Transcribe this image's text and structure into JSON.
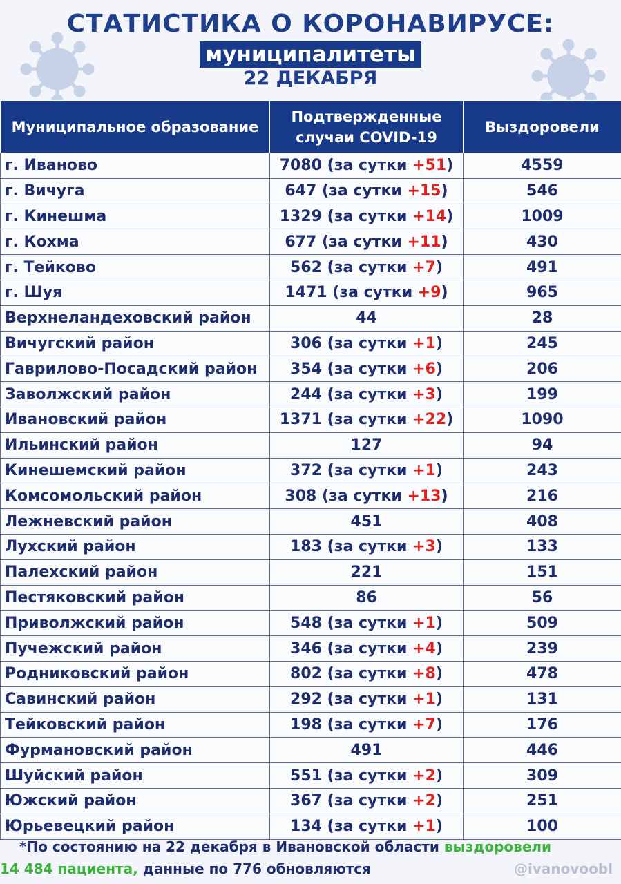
{
  "header": {
    "title": "СТАТИСТИКА О КОРОНАВИРУСЕ:",
    "subtitle": "муниципалитеты",
    "date": "22 ДЕКАБРЯ"
  },
  "table": {
    "columns": [
      "Муниципальное образование",
      "Подтвержденные случаи COVID-19",
      "Выздоровели"
    ],
    "rows": [
      {
        "name": "г. Иваново",
        "cases": "7080",
        "inc": "+51",
        "recovered": "4559"
      },
      {
        "name": "г. Вичуга",
        "cases": "647",
        "inc": "+15",
        "recovered": "546"
      },
      {
        "name": "г. Кинешма",
        "cases": "1329",
        "inc": "+14",
        "recovered": "1009"
      },
      {
        "name": "г. Кохма",
        "cases": "677",
        "inc": "+11",
        "recovered": "430"
      },
      {
        "name": "г. Тейково",
        "cases": "562",
        "inc": "+7",
        "recovered": "491"
      },
      {
        "name": "г. Шуя",
        "cases": "1471",
        "inc": "+9",
        "recovered": "965"
      },
      {
        "name": "Верхнеландеховский район",
        "cases": "44",
        "inc": "",
        "recovered": "28"
      },
      {
        "name": "Вичугский район",
        "cases": "306",
        "inc": "+1",
        "recovered": "245"
      },
      {
        "name": "Гаврилово-Посадский район",
        "cases": "354",
        "inc": "+6",
        "recovered": "206"
      },
      {
        "name": "Заволжский район",
        "cases": "244",
        "inc": "+3",
        "recovered": "199"
      },
      {
        "name": "Ивановский район",
        "cases": "1371",
        "inc": "+22",
        "recovered": "1090"
      },
      {
        "name": "Ильинский район",
        "cases": "127",
        "inc": "",
        "recovered": "94"
      },
      {
        "name": "Кинешемский район",
        "cases": "372",
        "inc": "+1",
        "recovered": "243"
      },
      {
        "name": "Комсомольский район",
        "cases": "308",
        "inc": "+13",
        "recovered": "216"
      },
      {
        "name": "Лежневский район",
        "cases": "451",
        "inc": "",
        "recovered": "408"
      },
      {
        "name": "Лухский район",
        "cases": "183",
        "inc": "+3",
        "recovered": "133"
      },
      {
        "name": "Палехский район",
        "cases": "221",
        "inc": "",
        "recovered": "151"
      },
      {
        "name": "Пестяковский район",
        "cases": "86",
        "inc": "",
        "recovered": "56"
      },
      {
        "name": "Приволжский район",
        "cases": "548",
        "inc": "+1",
        "recovered": "509"
      },
      {
        "name": "Пучежский район",
        "cases": "346",
        "inc": "+4",
        "recovered": "239"
      },
      {
        "name": "Родниковский район",
        "cases": "802",
        "inc": "+8",
        "recovered": "478"
      },
      {
        "name": "Савинский район",
        "cases": "292",
        "inc": "+1",
        "recovered": "131"
      },
      {
        "name": "Тейковский район",
        "cases": "198",
        "inc": "+7",
        "recovered": "176"
      },
      {
        "name": "Фурмановский район",
        "cases": "491",
        "inc": "",
        "recovered": "446"
      },
      {
        "name": "Шуйский район",
        "cases": "551",
        "inc": "+2",
        "recovered": "309"
      },
      {
        "name": "Южский район",
        "cases": "367",
        "inc": "+2",
        "recovered": "251"
      },
      {
        "name": "Юрьевецкий район",
        "cases": "134",
        "inc": "+1",
        "recovered": "100"
      }
    ],
    "daily_prefix": "(за сутки ",
    "daily_suffix": ")"
  },
  "footer": {
    "line1_a": "*По состоянию на 22 декабря в Ивановской области ",
    "line1_b": "выздоровели",
    "line2_a": "14 484 пациента,",
    "line2_b": " данные по 776 обновляются",
    "handle": "@ivanovoobl"
  },
  "colors": {
    "brand": "#173a8a",
    "increase": "#e0201f",
    "recovered_highlight": "#3bb23a"
  }
}
